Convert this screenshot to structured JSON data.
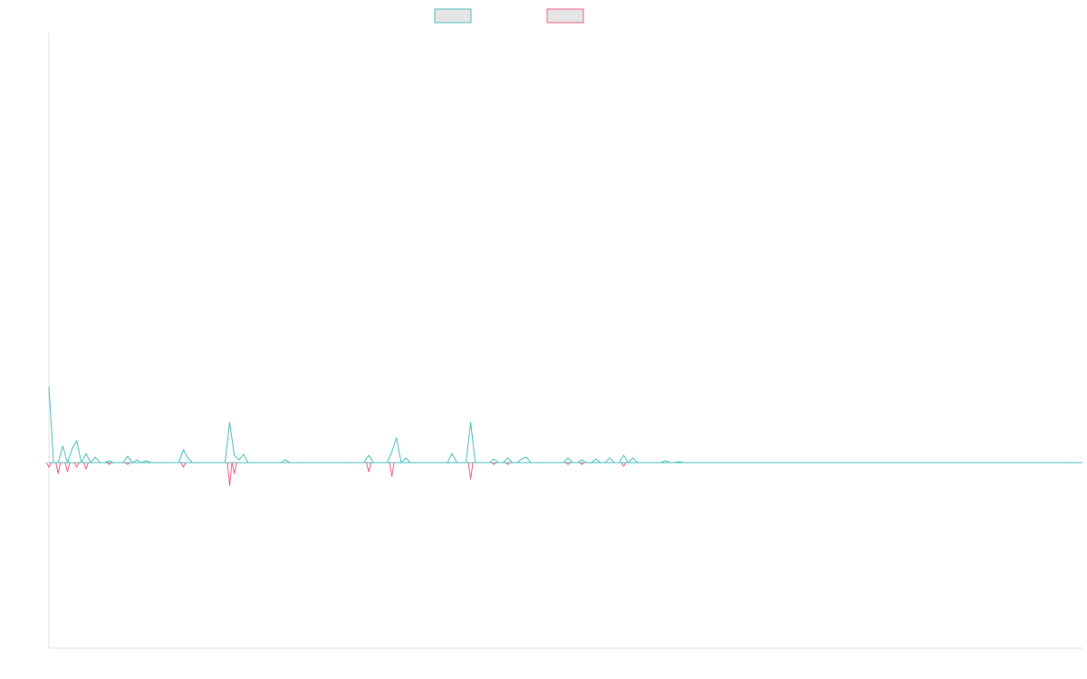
{
  "chart_data": {
    "type": "line",
    "title": "",
    "xlabel": "",
    "ylabel": "",
    "grid": false,
    "legend": "top-center",
    "ylim": [
      -200,
      470
    ],
    "xlim": [
      0,
      223
    ],
    "series": [
      {
        "name": "",
        "color": "#4bc0c0",
        "fill": "#e5e5e5",
        "points": [
          [
            0,
            83
          ],
          [
            1,
            0
          ],
          [
            2,
            0
          ],
          [
            3,
            18
          ],
          [
            4,
            0
          ],
          [
            5,
            15
          ],
          [
            6,
            24
          ],
          [
            7,
            0
          ],
          [
            8,
            10
          ],
          [
            9,
            0
          ],
          [
            10,
            6
          ],
          [
            11,
            0
          ],
          [
            12,
            0
          ],
          [
            13,
            2
          ],
          [
            14,
            0
          ],
          [
            15,
            0
          ],
          [
            16,
            0
          ],
          [
            17,
            7
          ],
          [
            18,
            0
          ],
          [
            19,
            3
          ],
          [
            20,
            0
          ],
          [
            21,
            2
          ],
          [
            22,
            0
          ],
          [
            23,
            0
          ],
          [
            24,
            0
          ],
          [
            25,
            0
          ],
          [
            26,
            0
          ],
          [
            27,
            0
          ],
          [
            28,
            0
          ],
          [
            29,
            14
          ],
          [
            30,
            5
          ],
          [
            31,
            0
          ],
          [
            32,
            0
          ],
          [
            33,
            0
          ],
          [
            34,
            0
          ],
          [
            35,
            0
          ],
          [
            36,
            0
          ],
          [
            37,
            0
          ],
          [
            38,
            0
          ],
          [
            39,
            44
          ],
          [
            40,
            8
          ],
          [
            41,
            3
          ],
          [
            42,
            9
          ],
          [
            43,
            0
          ],
          [
            44,
            0
          ],
          [
            45,
            0
          ],
          [
            46,
            0
          ],
          [
            47,
            0
          ],
          [
            48,
            0
          ],
          [
            49,
            0
          ],
          [
            50,
            0
          ],
          [
            51,
            3
          ],
          [
            52,
            0
          ],
          [
            53,
            0
          ],
          [
            54,
            0
          ],
          [
            55,
            0
          ],
          [
            56,
            0
          ],
          [
            57,
            0
          ],
          [
            58,
            0
          ],
          [
            59,
            0
          ],
          [
            60,
            0
          ],
          [
            61,
            0
          ],
          [
            62,
            0
          ],
          [
            63,
            0
          ],
          [
            64,
            0
          ],
          [
            65,
            0
          ],
          [
            66,
            0
          ],
          [
            67,
            0
          ],
          [
            68,
            0
          ],
          [
            69,
            8
          ],
          [
            70,
            0
          ],
          [
            71,
            0
          ],
          [
            72,
            0
          ],
          [
            73,
            0
          ],
          [
            74,
            12
          ],
          [
            75,
            27
          ],
          [
            76,
            0
          ],
          [
            77,
            5
          ],
          [
            78,
            0
          ],
          [
            79,
            0
          ],
          [
            80,
            0
          ],
          [
            81,
            0
          ],
          [
            82,
            0
          ],
          [
            83,
            0
          ],
          [
            84,
            0
          ],
          [
            85,
            0
          ],
          [
            86,
            0
          ],
          [
            87,
            10
          ],
          [
            88,
            0
          ],
          [
            89,
            0
          ],
          [
            90,
            0
          ],
          [
            91,
            44
          ],
          [
            92,
            0
          ],
          [
            93,
            0
          ],
          [
            94,
            0
          ],
          [
            95,
            0
          ],
          [
            96,
            4
          ],
          [
            97,
            0
          ],
          [
            98,
            0
          ],
          [
            99,
            5
          ],
          [
            100,
            0
          ],
          [
            101,
            0
          ],
          [
            102,
            4
          ],
          [
            103,
            6
          ],
          [
            104,
            0
          ],
          [
            105,
            0
          ],
          [
            106,
            0
          ],
          [
            107,
            0
          ],
          [
            108,
            0
          ],
          [
            109,
            0
          ],
          [
            110,
            0
          ],
          [
            111,
            0
          ],
          [
            112,
            5
          ],
          [
            113,
            0
          ],
          [
            114,
            0
          ],
          [
            115,
            3
          ],
          [
            116,
            0
          ],
          [
            117,
            0
          ],
          [
            118,
            4
          ],
          [
            119,
            0
          ],
          [
            120,
            0
          ],
          [
            121,
            5
          ],
          [
            122,
            0
          ],
          [
            123,
            0
          ],
          [
            124,
            8
          ],
          [
            125,
            0
          ],
          [
            126,
            5
          ],
          [
            127,
            0
          ],
          [
            128,
            0
          ],
          [
            129,
            0
          ],
          [
            130,
            0
          ],
          [
            131,
            0
          ],
          [
            132,
            0
          ],
          [
            133,
            2
          ],
          [
            134,
            0
          ],
          [
            135,
            0
          ],
          [
            136,
            1
          ],
          [
            137,
            0
          ],
          [
            138,
            0
          ],
          [
            139,
            0
          ],
          [
            140,
            0
          ],
          [
            141,
            0
          ],
          [
            142,
            0
          ],
          [
            143,
            0
          ],
          [
            144,
            0
          ],
          [
            145,
            0
          ],
          [
            146,
            0
          ],
          [
            147,
            0
          ],
          [
            148,
            0
          ],
          [
            149,
            0
          ],
          [
            150,
            0
          ],
          [
            151,
            0
          ],
          [
            152,
            0
          ],
          [
            153,
            0
          ],
          [
            154,
            0
          ],
          [
            155,
            0
          ],
          [
            156,
            0
          ],
          [
            157,
            0
          ],
          [
            158,
            0
          ],
          [
            159,
            0
          ],
          [
            160,
            0
          ],
          [
            161,
            0
          ],
          [
            162,
            0
          ],
          [
            163,
            0
          ],
          [
            164,
            0
          ],
          [
            165,
            0
          ],
          [
            166,
            0
          ],
          [
            167,
            0
          ],
          [
            168,
            0
          ],
          [
            169,
            0
          ],
          [
            170,
            0
          ],
          [
            171,
            0
          ],
          [
            172,
            0
          ],
          [
            173,
            0
          ],
          [
            174,
            0
          ],
          [
            175,
            0
          ],
          [
            176,
            0
          ],
          [
            177,
            0
          ],
          [
            178,
            0
          ],
          [
            179,
            0
          ],
          [
            180,
            0
          ],
          [
            181,
            0
          ],
          [
            182,
            0
          ],
          [
            183,
            0
          ],
          [
            184,
            0
          ],
          [
            185,
            0
          ],
          [
            186,
            0
          ],
          [
            187,
            0
          ],
          [
            188,
            0
          ],
          [
            189,
            0
          ],
          [
            190,
            0
          ],
          [
            191,
            0
          ],
          [
            192,
            0
          ],
          [
            193,
            0
          ],
          [
            194,
            0
          ],
          [
            195,
            0
          ],
          [
            196,
            0
          ],
          [
            197,
            0
          ],
          [
            198,
            0
          ],
          [
            199,
            0
          ],
          [
            200,
            0
          ],
          [
            201,
            0
          ],
          [
            202,
            0
          ],
          [
            203,
            0
          ],
          [
            204,
            0
          ],
          [
            205,
            0
          ],
          [
            206,
            0
          ],
          [
            207,
            0
          ],
          [
            208,
            0
          ],
          [
            209,
            0
          ],
          [
            210,
            0
          ],
          [
            211,
            0
          ],
          [
            212,
            0
          ],
          [
            213,
            0
          ],
          [
            214,
            0
          ],
          [
            215,
            0
          ],
          [
            216,
            0
          ],
          [
            217,
            0
          ],
          [
            218,
            0
          ],
          [
            219,
            0
          ],
          [
            220,
            0
          ],
          [
            221,
            0
          ],
          [
            222,
            0
          ],
          [
            223,
            0
          ]
        ]
      },
      {
        "name": "",
        "color": "#f0627e",
        "fill": "#e5e5e5",
        "points": [
          [
            0,
            -5
          ],
          [
            2,
            -12
          ],
          [
            4,
            -10
          ],
          [
            6,
            -5
          ],
          [
            8,
            -7
          ],
          [
            13,
            -2
          ],
          [
            17,
            -2
          ],
          [
            29,
            -5
          ],
          [
            39,
            -25
          ],
          [
            40,
            -12
          ],
          [
            69,
            -10
          ],
          [
            74,
            -15
          ],
          [
            91,
            -18
          ],
          [
            96,
            -2
          ],
          [
            99,
            -2
          ],
          [
            112,
            -2
          ],
          [
            115,
            -2
          ],
          [
            124,
            -4
          ]
        ]
      }
    ]
  }
}
